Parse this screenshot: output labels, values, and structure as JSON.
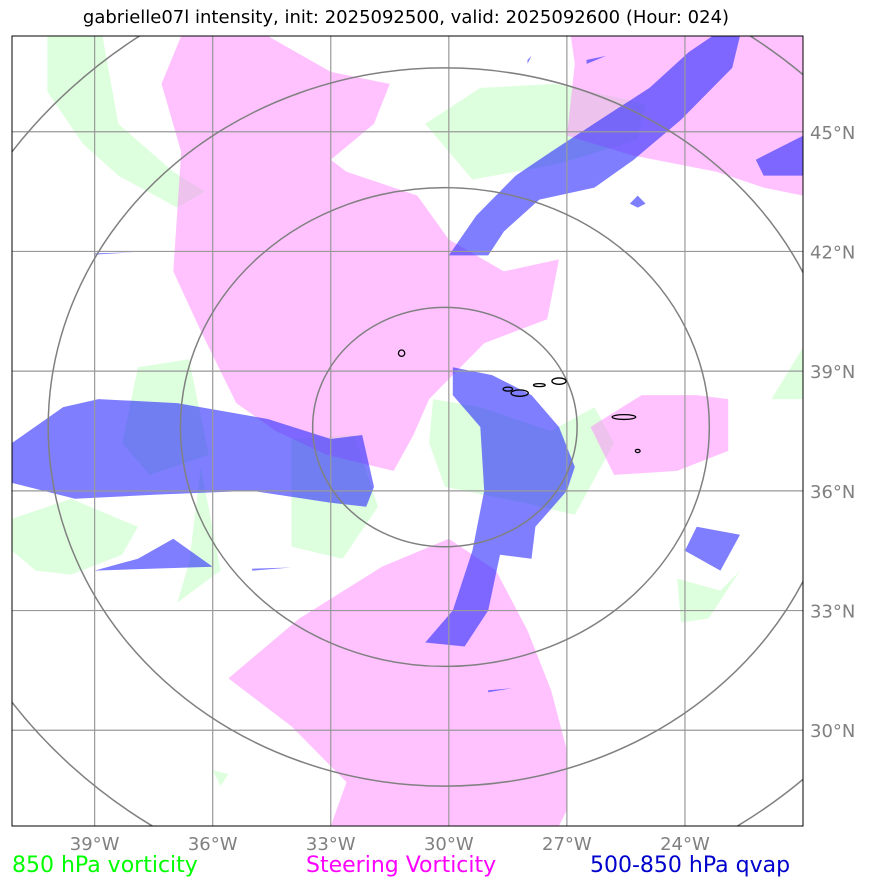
{
  "chart_data": {
    "type": "map",
    "title": "gabrielle07l intensity, init: 2025092500, valid: 2025092600 (Hour: 024)",
    "lon_range": [
      -41.1,
      -21.0
    ],
    "lat_range": [
      27.6,
      47.4
    ],
    "lon_ticks": [
      -39,
      -36,
      -33,
      -30,
      -27,
      -24
    ],
    "lat_ticks": [
      30,
      33,
      36,
      39,
      42,
      45
    ],
    "lon_tick_labels": [
      "39°W",
      "36°W",
      "33°W",
      "30°W",
      "27°W",
      "24°W"
    ],
    "lat_tick_labels": [
      "30°N",
      "33°N",
      "36°N",
      "39°N",
      "42°N",
      "45°N"
    ],
    "grid": true,
    "range_ring_center": [
      -30.1,
      37.6
    ],
    "range_ring_radii_deg": [
      3,
      6,
      9,
      12
    ],
    "legend": [
      {
        "label": "850 hPa vorticity",
        "color": "#00ff00"
      },
      {
        "label": "Steering Vorticity",
        "color": "#ff00ff"
      },
      {
        "label": "500-850 hPa qvap",
        "color": "#0000cc"
      }
    ],
    "layers": [
      {
        "field": "850 hPa vorticity",
        "color": "#ccffcc",
        "opacity": 0.65,
        "polygons": [
          [
            [
              -40.2,
              47.4
            ],
            [
              -38.8,
              47.4
            ],
            [
              -38.4,
              45.2
            ],
            [
              -37.0,
              44.0
            ],
            [
              -36.2,
              43.5
            ],
            [
              -36.9,
              43.1
            ],
            [
              -38.4,
              43.9
            ],
            [
              -39.3,
              44.7
            ],
            [
              -40.2,
              46.0
            ]
          ],
          [
            [
              -30.6,
              45.2
            ],
            [
              -29.2,
              46.1
            ],
            [
              -27.3,
              46.2
            ],
            [
              -25.0,
              45.7
            ],
            [
              -25.2,
              44.8
            ],
            [
              -27.2,
              44.2
            ],
            [
              -29.4,
              43.8
            ]
          ],
          [
            [
              -37.9,
              39.1
            ],
            [
              -36.6,
              39.3
            ],
            [
              -36.1,
              36.9
            ],
            [
              -37.6,
              36.4
            ],
            [
              -38.3,
              37.2
            ]
          ],
          [
            [
              -41.1,
              35.3
            ],
            [
              -39.6,
              35.8
            ],
            [
              -37.9,
              35.1
            ],
            [
              -38.3,
              34.4
            ],
            [
              -39.6,
              33.9
            ],
            [
              -40.5,
              34.0
            ],
            [
              -41.1,
              34.5
            ]
          ],
          [
            [
              -36.3,
              36.6
            ],
            [
              -35.8,
              34.0
            ],
            [
              -36.9,
              33.2
            ],
            [
              -36.6,
              34.2
            ]
          ],
          [
            [
              -34.0,
              37.3
            ],
            [
              -32.4,
              37.4
            ],
            [
              -31.8,
              35.6
            ],
            [
              -32.7,
              34.3
            ],
            [
              -34.0,
              34.6
            ]
          ],
          [
            [
              -30.4,
              38.3
            ],
            [
              -29.2,
              38.1
            ],
            [
              -27.4,
              37.5
            ],
            [
              -26.3,
              38.1
            ],
            [
              -25.8,
              37.2
            ],
            [
              -26.8,
              35.4
            ],
            [
              -28.1,
              35.7
            ],
            [
              -30.1,
              36.1
            ],
            [
              -30.5,
              37.2
            ]
          ],
          [
            [
              -24.2,
              33.8
            ],
            [
              -23.1,
              33.5
            ],
            [
              -22.6,
              34.0
            ],
            [
              -23.4,
              32.8
            ],
            [
              -24.1,
              32.7
            ]
          ],
          [
            [
              -21.8,
              38.3
            ],
            [
              -21.0,
              38.3
            ],
            [
              -21.0,
              39.6
            ]
          ],
          [
            [
              -36.0,
              29.0
            ],
            [
              -35.6,
              28.9
            ],
            [
              -35.8,
              28.6
            ]
          ]
        ]
      },
      {
        "field": "Steering Vorticity",
        "color": "#ff77ff",
        "opacity": 0.45,
        "polygons": [
          [
            [
              -36.8,
              47.4
            ],
            [
              -34.6,
              47.4
            ],
            [
              -33.0,
              46.5
            ],
            [
              -31.5,
              46.2
            ],
            [
              -31.9,
              45.2
            ],
            [
              -33.0,
              44.3
            ],
            [
              -32.6,
              44.0
            ],
            [
              -30.8,
              43.4
            ],
            [
              -30.0,
              42.3
            ],
            [
              -28.6,
              41.5
            ],
            [
              -27.2,
              41.8
            ],
            [
              -27.5,
              40.3
            ],
            [
              -29.1,
              39.7
            ],
            [
              -30.5,
              38.3
            ],
            [
              -30.9,
              37.4
            ],
            [
              -31.4,
              36.5
            ],
            [
              -33.1,
              36.9
            ],
            [
              -34.4,
              37.5
            ],
            [
              -35.4,
              38.2
            ],
            [
              -36.3,
              40.0
            ],
            [
              -37.0,
              41.5
            ],
            [
              -36.8,
              44.5
            ],
            [
              -37.3,
              46.2
            ]
          ],
          [
            [
              -35.6,
              31.3
            ],
            [
              -33.8,
              32.8
            ],
            [
              -31.7,
              34.1
            ],
            [
              -30.0,
              34.8
            ],
            [
              -28.8,
              34.0
            ],
            [
              -28.0,
              32.5
            ],
            [
              -27.4,
              31.0
            ],
            [
              -27.0,
              29.5
            ],
            [
              -27.0,
              28.0
            ],
            [
              -27.2,
              27.6
            ],
            [
              -33.0,
              27.6
            ],
            [
              -32.6,
              28.7
            ],
            [
              -34.0,
              30.1
            ]
          ],
          [
            [
              -26.9,
              47.4
            ],
            [
              -21.0,
              47.4
            ],
            [
              -21.0,
              43.4
            ],
            [
              -22.0,
              43.6
            ],
            [
              -23.2,
              44.0
            ],
            [
              -25.3,
              44.4
            ],
            [
              -27.0,
              44.9
            ],
            [
              -26.8,
              46.7
            ]
          ],
          [
            [
              -26.4,
              37.6
            ],
            [
              -25.1,
              38.4
            ],
            [
              -23.7,
              38.4
            ],
            [
              -22.9,
              38.3
            ],
            [
              -22.9,
              37.0
            ],
            [
              -24.2,
              36.5
            ],
            [
              -25.8,
              36.4
            ]
          ]
        ]
      },
      {
        "field": "500-850 hPa qvap",
        "color": "#2f2fff",
        "opacity": 0.62,
        "polygons": [
          [
            [
              -41.1,
              37.2
            ],
            [
              -39.8,
              38.1
            ],
            [
              -38.9,
              38.3
            ],
            [
              -36.9,
              38.2
            ],
            [
              -34.6,
              37.8
            ],
            [
              -33.0,
              37.3
            ],
            [
              -32.2,
              37.4
            ],
            [
              -31.9,
              36.1
            ],
            [
              -32.1,
              35.6
            ],
            [
              -33.0,
              35.7
            ],
            [
              -35.0,
              36.0
            ],
            [
              -37.5,
              35.9
            ],
            [
              -39.5,
              35.8
            ],
            [
              -41.1,
              36.2
            ]
          ],
          [
            [
              -29.9,
              39.1
            ],
            [
              -28.9,
              38.9
            ],
            [
              -27.9,
              38.4
            ],
            [
              -27.2,
              37.6
            ],
            [
              -26.8,
              36.6
            ],
            [
              -27.0,
              36.0
            ],
            [
              -27.8,
              35.1
            ],
            [
              -27.9,
              34.3
            ],
            [
              -28.7,
              34.4
            ],
            [
              -29.0,
              33.0
            ],
            [
              -29.6,
              32.1
            ],
            [
              -30.6,
              32.2
            ],
            [
              -29.9,
              33.0
            ],
            [
              -29.4,
              34.5
            ],
            [
              -29.1,
              36.0
            ],
            [
              -29.2,
              37.6
            ],
            [
              -29.9,
              38.4
            ]
          ],
          [
            [
              -30.0,
              41.9
            ],
            [
              -29.3,
              42.9
            ],
            [
              -28.3,
              43.9
            ],
            [
              -27.4,
              44.5
            ],
            [
              -26.0,
              45.4
            ],
            [
              -24.9,
              46.1
            ],
            [
              -23.9,
              47.0
            ],
            [
              -23.3,
              47.4
            ],
            [
              -22.6,
              47.4
            ],
            [
              -22.8,
              46.6
            ],
            [
              -24.1,
              45.3
            ],
            [
              -25.3,
              44.3
            ],
            [
              -26.3,
              43.6
            ],
            [
              -27.7,
              43.3
            ],
            [
              -28.6,
              42.5
            ],
            [
              -29.0,
              41.9
            ]
          ],
          [
            [
              -22.2,
              44.3
            ],
            [
              -21.0,
              44.9
            ],
            [
              -21.0,
              43.9
            ],
            [
              -22.0,
              43.9
            ]
          ],
          [
            [
              -23.7,
              35.1
            ],
            [
              -22.6,
              34.9
            ],
            [
              -23.1,
              34.0
            ],
            [
              -24.0,
              34.5
            ]
          ],
          [
            [
              -37.0,
              34.8
            ],
            [
              -36.0,
              34.1
            ],
            [
              -39.0,
              34.0
            ],
            [
              -37.9,
              34.3
            ]
          ],
          [
            [
              -35.0,
              34.05
            ],
            [
              -34.0,
              34.08
            ],
            [
              -35.0,
              34.0
            ]
          ],
          [
            [
              -39.0,
              41.95
            ],
            [
              -38.0,
              41.98
            ],
            [
              -39.0,
              41.92
            ]
          ],
          [
            [
              -25.2,
              43.4
            ],
            [
              -25.0,
              43.2
            ],
            [
              -25.2,
              43.1
            ],
            [
              -25.4,
              43.2
            ]
          ],
          [
            [
              -26.5,
              46.8
            ],
            [
              -26.0,
              46.9
            ],
            [
              -26.5,
              46.7
            ]
          ],
          [
            [
              -29.0,
              31.0
            ],
            [
              -28.4,
              31.05
            ],
            [
              -29.0,
              30.95
            ]
          ],
          [
            [
              -28.0,
              46.8
            ],
            [
              -27.9,
              46.9
            ],
            [
              -28.0,
              46.7
            ]
          ]
        ]
      }
    ],
    "contours": [
      {
        "lon": -31.2,
        "lat": 39.45,
        "rx": 0.08,
        "ry": 0.08
      },
      {
        "lon": -27.2,
        "lat": 38.75,
        "rx": 0.18,
        "ry": 0.08
      },
      {
        "lon": -28.5,
        "lat": 38.55,
        "rx": 0.12,
        "ry": 0.05
      },
      {
        "lon": -28.2,
        "lat": 38.45,
        "rx": 0.22,
        "ry": 0.08
      },
      {
        "lon": -27.7,
        "lat": 38.65,
        "rx": 0.15,
        "ry": 0.03
      },
      {
        "lon": -25.55,
        "lat": 37.85,
        "rx": 0.3,
        "ry": 0.06
      },
      {
        "lon": -25.2,
        "lat": 37.0,
        "rx": 0.06,
        "ry": 0.04
      }
    ]
  }
}
